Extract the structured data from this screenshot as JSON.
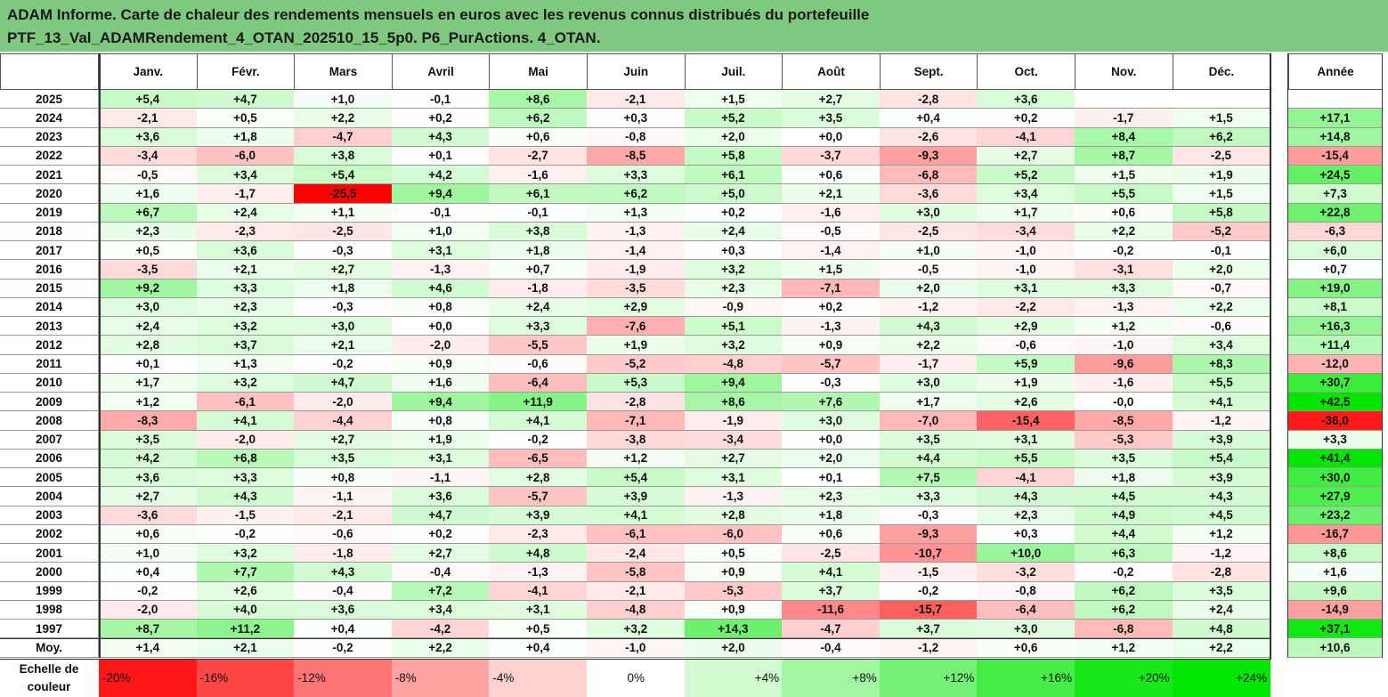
{
  "title": {
    "line1": "ADAM Informe. Carte de chaleur des rendements mensuels en euros avec les revenus connus distribués du portefeuille",
    "line2": "PTF_13_Val_ADAMRendement_4_OTAN_202510_15_5p0. P6_PurActions. 4_OTAN."
  },
  "colors": {
    "header_bg": "#7fc87f",
    "neg_max": "#ff0000",
    "pos_max": "#00e600",
    "neutral": "#ffffff"
  },
  "chart_data": {
    "type": "heatmap",
    "months": [
      "Janv.",
      "Févr.",
      "Mars",
      "Avril",
      "Mai",
      "Juin",
      "Juil.",
      "Août",
      "Sept.",
      "Oct.",
      "Nov.",
      "Déc."
    ],
    "year_label": "Année",
    "avg_label": "Moy.",
    "rows": [
      {
        "year": "2025",
        "values": [
          "+5,4",
          "+4,7",
          "+1,0",
          "-0,1",
          "+8,6",
          "-2,1",
          "+1,5",
          "+2,7",
          "-2,8",
          "+3,6",
          "",
          ""
        ],
        "annual": ""
      },
      {
        "year": "2024",
        "values": [
          "-2,1",
          "+0,5",
          "+2,2",
          "+0,2",
          "+6,2",
          "+0,3",
          "+5,2",
          "+3,5",
          "+0,4",
          "+0,2",
          "-1,7",
          "+1,5"
        ],
        "annual": "+17,1"
      },
      {
        "year": "2023",
        "values": [
          "+3,6",
          "+1,8",
          "-4,7",
          "+4,3",
          "+0,6",
          "-0,8",
          "+2,0",
          "+0,0",
          "-2,6",
          "-4,1",
          "+8,4",
          "+6,2"
        ],
        "annual": "+14,8"
      },
      {
        "year": "2022",
        "values": [
          "-3,4",
          "-6,0",
          "+3,8",
          "+0,1",
          "-2,7",
          "-8,5",
          "+5,8",
          "-3,7",
          "-9,3",
          "+2,7",
          "+8,7",
          "-2,5"
        ],
        "annual": "-15,4"
      },
      {
        "year": "2021",
        "values": [
          "-0,5",
          "+3,4",
          "+5,4",
          "+4,2",
          "-1,6",
          "+3,3",
          "+6,1",
          "+0,6",
          "-6,8",
          "+5,2",
          "+1,5",
          "+1,9"
        ],
        "annual": "+24,5"
      },
      {
        "year": "2020",
        "values": [
          "+1,6",
          "-1,7",
          "-25,5",
          "+9,4",
          "+6,1",
          "+6,2",
          "+5,0",
          "+2,1",
          "-3,6",
          "+3,4",
          "+5,5",
          "+1,5"
        ],
        "annual": "+7,3"
      },
      {
        "year": "2019",
        "values": [
          "+6,7",
          "+2,4",
          "+1,1",
          "-0,1",
          "-0,1",
          "+1,3",
          "+0,2",
          "-1,6",
          "+3,0",
          "+1,7",
          "+0,6",
          "+5,8"
        ],
        "annual": "+22,8"
      },
      {
        "year": "2018",
        "values": [
          "+2,3",
          "-2,3",
          "-2,5",
          "+1,0",
          "+3,8",
          "-1,3",
          "+2,4",
          "-0,5",
          "-2,5",
          "-3,4",
          "+2,2",
          "-5,2"
        ],
        "annual": "-6,3"
      },
      {
        "year": "2017",
        "values": [
          "+0,5",
          "+3,6",
          "-0,3",
          "+3,1",
          "+1,8",
          "-1,4",
          "+0,3",
          "-1,4",
          "+1,0",
          "-1,0",
          "-0,2",
          "-0,1"
        ],
        "annual": "+6,0"
      },
      {
        "year": "2016",
        "values": [
          "-3,5",
          "+2,1",
          "+2,7",
          "-1,3",
          "+0,7",
          "-1,9",
          "+3,2",
          "+1,5",
          "-0,5",
          "-1,0",
          "-3,1",
          "+2,0"
        ],
        "annual": "+0,7"
      },
      {
        "year": "2015",
        "values": [
          "+9,2",
          "+3,3",
          "+1,8",
          "+4,6",
          "-1,8",
          "-3,5",
          "+2,3",
          "-7,1",
          "+2,0",
          "+3,1",
          "+3,3",
          "-0,7"
        ],
        "annual": "+19,0"
      },
      {
        "year": "2014",
        "values": [
          "+3,0",
          "+2,3",
          "-0,3",
          "+0,8",
          "+2,4",
          "+2,9",
          "-0,9",
          "+0,2",
          "-1,2",
          "-2,2",
          "-1,3",
          "+2,2"
        ],
        "annual": "+8,1"
      },
      {
        "year": "2013",
        "values": [
          "+2,4",
          "+3,2",
          "+3,0",
          "+0,0",
          "+3,3",
          "-7,6",
          "+5,1",
          "-1,3",
          "+4,3",
          "+2,9",
          "+1,2",
          "-0,6"
        ],
        "annual": "+16,3"
      },
      {
        "year": "2012",
        "values": [
          "+2,8",
          "+3,7",
          "+2,1",
          "-2,0",
          "-5,5",
          "+1,9",
          "+3,2",
          "+0,9",
          "+2,2",
          "-0,6",
          "-1,0",
          "+3,4"
        ],
        "annual": "+11,4"
      },
      {
        "year": "2011",
        "values": [
          "+0,1",
          "+1,3",
          "-0,2",
          "+0,9",
          "-0,6",
          "-5,2",
          "-4,8",
          "-5,7",
          "-1,7",
          "+5,9",
          "-9,6",
          "+8,3"
        ],
        "annual": "-12,0"
      },
      {
        "year": "2010",
        "values": [
          "+1,7",
          "+3,2",
          "+4,7",
          "+1,6",
          "-6,4",
          "+5,3",
          "+9,4",
          "-0,3",
          "+3,0",
          "+1,9",
          "-1,6",
          "+5,5"
        ],
        "annual": "+30,7"
      },
      {
        "year": "2009",
        "values": [
          "+1,2",
          "-6,1",
          "-2,0",
          "+9,4",
          "+11,9",
          "-2,8",
          "+8,6",
          "+7,6",
          "+1,7",
          "+2,6",
          "-0,0",
          "+4,1"
        ],
        "annual": "+42,5"
      },
      {
        "year": "2008",
        "values": [
          "-8,3",
          "+4,1",
          "-4,4",
          "+0,8",
          "+4,1",
          "-7,1",
          "-1,9",
          "+3,0",
          "-7,0",
          "-15,4",
          "-8,5",
          "-1,2"
        ],
        "annual": "-36,0"
      },
      {
        "year": "2007",
        "values": [
          "+3,5",
          "-2,0",
          "+2,7",
          "+1,9",
          "-0,2",
          "-3,8",
          "-3,4",
          "+0,0",
          "+3,5",
          "+3,1",
          "-5,3",
          "+3,9"
        ],
        "annual": "+3,3"
      },
      {
        "year": "2006",
        "values": [
          "+4,2",
          "+6,8",
          "+3,5",
          "+3,1",
          "-6,5",
          "+1,2",
          "+2,7",
          "+2,0",
          "+4,4",
          "+5,5",
          "+3,5",
          "+5,4"
        ],
        "annual": "+41,4"
      },
      {
        "year": "2005",
        "values": [
          "+3,6",
          "+3,3",
          "+0,8",
          "-1,1",
          "+2,8",
          "+5,4",
          "+3,1",
          "+0,1",
          "+7,5",
          "-4,1",
          "+1,8",
          "+3,9"
        ],
        "annual": "+30,0"
      },
      {
        "year": "2004",
        "values": [
          "+2,7",
          "+4,3",
          "-1,1",
          "+3,6",
          "-5,7",
          "+3,9",
          "-1,3",
          "+2,3",
          "+3,3",
          "+4,3",
          "+4,5",
          "+4,3"
        ],
        "annual": "+27,9"
      },
      {
        "year": "2003",
        "values": [
          "-3,6",
          "-1,5",
          "-2,1",
          "+4,7",
          "+3,9",
          "+4,1",
          "+2,8",
          "+1,8",
          "-0,3",
          "+2,3",
          "+4,9",
          "+4,5"
        ],
        "annual": "+23,2"
      },
      {
        "year": "2002",
        "values": [
          "+0,6",
          "-0,2",
          "-0,6",
          "+0,2",
          "-2,3",
          "-6,1",
          "-6,0",
          "+0,6",
          "-9,3",
          "+0,3",
          "+4,4",
          "+1,2"
        ],
        "annual": "-16,7"
      },
      {
        "year": "2001",
        "values": [
          "+1,0",
          "+3,2",
          "-1,8",
          "+2,7",
          "+4,8",
          "-2,4",
          "+0,5",
          "-2,5",
          "-10,7",
          "+10,0",
          "+6,3",
          "-1,2"
        ],
        "annual": "+8,6"
      },
      {
        "year": "2000",
        "values": [
          "+0,4",
          "+7,7",
          "+4,3",
          "-0,4",
          "-1,3",
          "-5,8",
          "+0,9",
          "+4,1",
          "-1,5",
          "-3,2",
          "-0,2",
          "-2,8"
        ],
        "annual": "+1,6"
      },
      {
        "year": "1999",
        "values": [
          "-0,2",
          "+2,6",
          "-0,4",
          "+7,2",
          "-4,1",
          "-2,1",
          "-5,3",
          "+3,7",
          "-0,2",
          "-0,8",
          "+6,2",
          "+3,5"
        ],
        "annual": "+9,6"
      },
      {
        "year": "1998",
        "values": [
          "-2,0",
          "+4,0",
          "+3,6",
          "+3,4",
          "+3,1",
          "-4,8",
          "+0,9",
          "-11,6",
          "-15,7",
          "-6,4",
          "+6,2",
          "+2,4"
        ],
        "annual": "-14,9"
      },
      {
        "year": "1997",
        "values": [
          "+8,7",
          "+11,2",
          "+0,4",
          "-4,2",
          "+0,5",
          "+3,2",
          "+14,3",
          "-4,7",
          "+3,7",
          "+3,0",
          "-6,8",
          "+4,8"
        ],
        "annual": "+37,1"
      }
    ],
    "average": {
      "values": [
        "+1,4",
        "+2,1",
        "-0,2",
        "+2,2",
        "+0,4",
        "-1,0",
        "+2,0",
        "-0,4",
        "-1,2",
        "+0,6",
        "+1,2",
        "+2,2"
      ],
      "annual": "+10,6"
    },
    "scale": {
      "title_line1": "Echelle de",
      "title_line2": "couleur",
      "labels": [
        "-20%",
        "-16%",
        "-12%",
        "-8%",
        "-4%",
        "0%",
        "+4%",
        "+8%",
        "+12%",
        "+16%",
        "+20%",
        "+24%"
      ],
      "values": [
        -20,
        -16,
        -12,
        -8,
        -4,
        0,
        4,
        8,
        12,
        16,
        20,
        24
      ]
    }
  }
}
